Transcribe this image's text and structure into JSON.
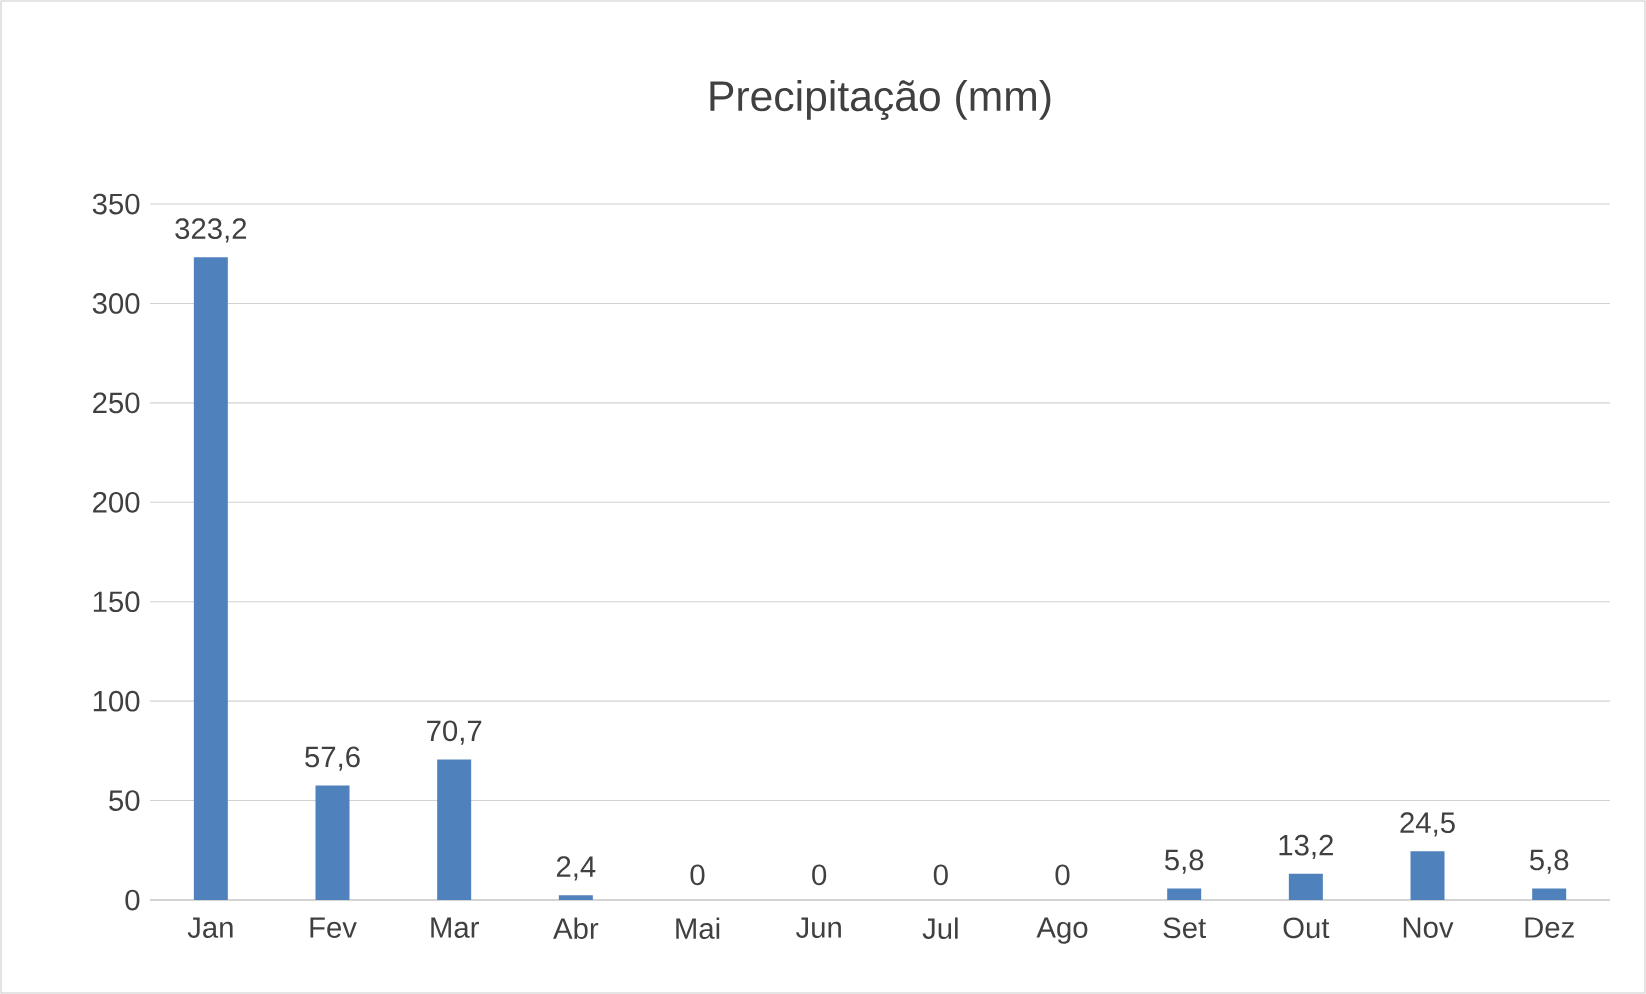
{
  "chart_data": {
    "type": "bar",
    "title": "Precipitação (mm)",
    "categories": [
      "Jan",
      "Fev",
      "Mar",
      "Abr",
      "Mai",
      "Jun",
      "Jul",
      "Ago",
      "Set",
      "Out",
      "Nov",
      "Dez"
    ],
    "values": [
      323.2,
      57.6,
      70.7,
      2.4,
      0,
      0,
      0,
      0,
      5.8,
      13.2,
      24.5,
      5.8
    ],
    "value_labels": [
      "323,2",
      "57,6",
      "70,7",
      "2,4",
      "0",
      "0",
      "0",
      "0",
      "5,8",
      "13,2",
      "24,5",
      "5,8"
    ],
    "color": "#4f81bd",
    "ylim": [
      0,
      350
    ],
    "yticks": [
      0,
      50,
      100,
      150,
      200,
      250,
      300,
      350
    ],
    "grid": "y"
  }
}
